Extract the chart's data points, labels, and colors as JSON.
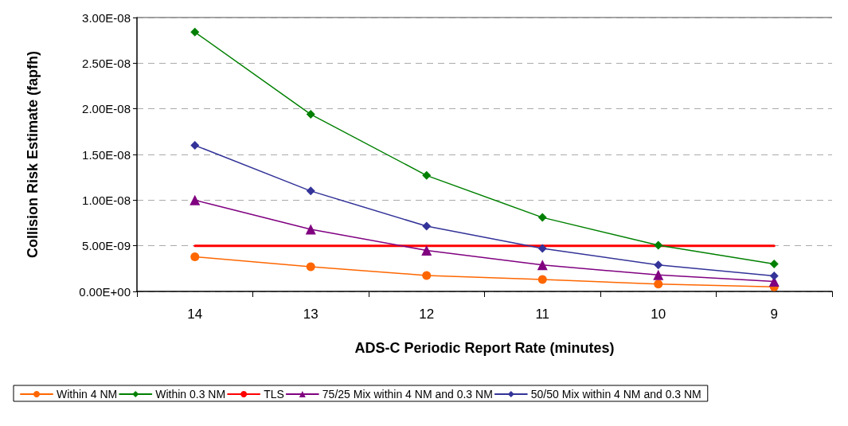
{
  "chart_data": {
    "type": "line",
    "xlabel": "ADS-C Periodic Report Rate (minutes)",
    "ylabel": "Collision Risk Estimate (fapfh)",
    "categories": [
      "14",
      "13",
      "12",
      "11",
      "10",
      "9"
    ],
    "ylim": [
      0,
      3e-08
    ],
    "yticks": [
      {
        "value": 0,
        "label": "0.00E+00"
      },
      {
        "value": 5e-09,
        "label": "5.00E-09"
      },
      {
        "value": 1e-08,
        "label": "1.00E-08"
      },
      {
        "value": 1.5e-08,
        "label": "1.50E-08"
      },
      {
        "value": 2e-08,
        "label": "2.00E-08"
      },
      {
        "value": 2.5e-08,
        "label": "2.50E-08"
      },
      {
        "value": 3e-08,
        "label": "3.00E-08"
      }
    ],
    "grid": "y",
    "legend": "bottom",
    "line_style": "solid",
    "series": [
      {
        "name": "Within 4 NM",
        "color": "#ff6600",
        "marker": "circle",
        "values": [
          3.8e-09,
          2.7e-09,
          1.75e-09,
          1.3e-09,
          8e-10,
          5e-10
        ]
      },
      {
        "name": "Within 0.3 NM",
        "color": "#008000",
        "marker": "diamond",
        "values": [
          2.84e-08,
          1.94e-08,
          1.27e-08,
          8.1e-09,
          5.05e-09,
          3e-09
        ]
      },
      {
        "name": "TLS",
        "color": "#ff0000",
        "marker": "none",
        "values": [
          5e-09,
          5e-09,
          5e-09,
          5e-09,
          5e-09,
          5e-09
        ]
      },
      {
        "name": "75/25 Mix within 4 NM and 0.3 NM",
        "color": "#800080",
        "marker": "triangle",
        "values": [
          1e-08,
          6.8e-09,
          4.5e-09,
          2.9e-09,
          1.8e-09,
          1.1e-09
        ]
      },
      {
        "name": "50/50 Mix within 4 NM and 0.3 NM",
        "color": "#333399",
        "marker": "diamond",
        "values": [
          1.6e-08,
          1.1e-08,
          7.15e-09,
          4.7e-09,
          2.9e-09,
          1.7e-09
        ]
      }
    ]
  }
}
